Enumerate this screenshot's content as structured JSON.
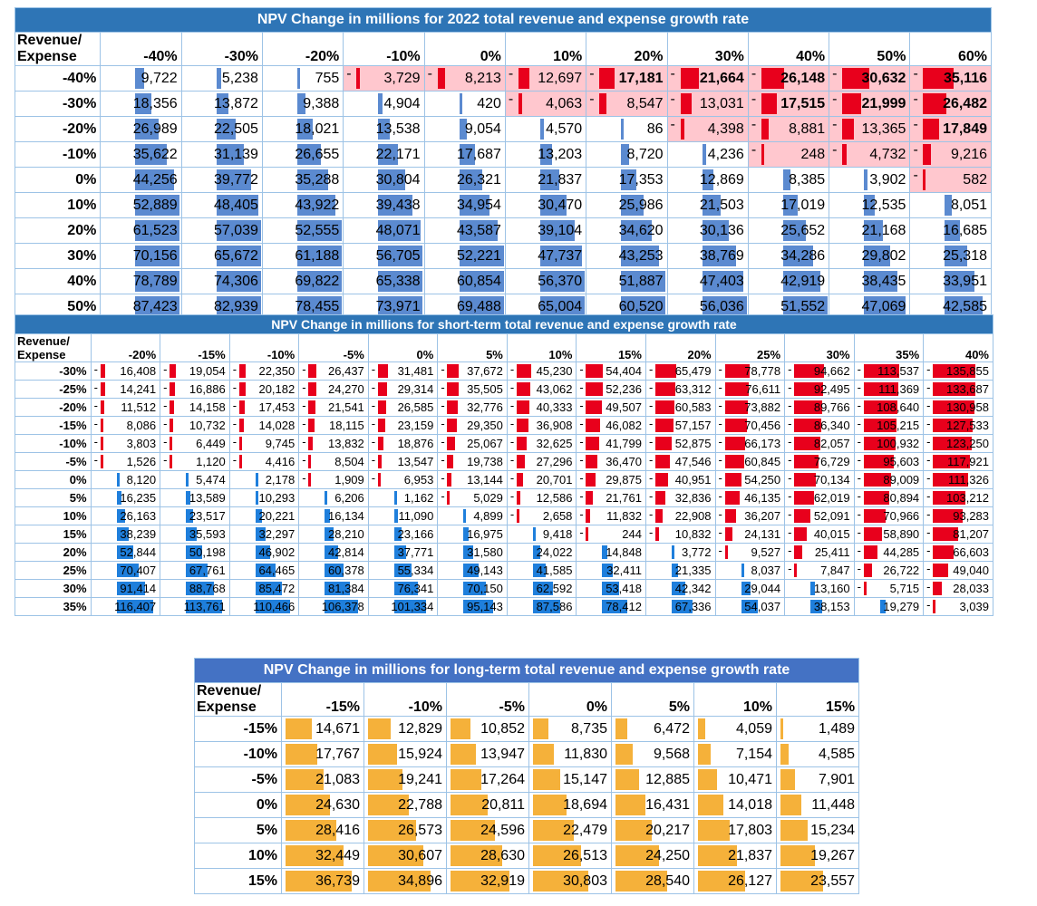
{
  "table1": {
    "title": "NPV Change in millions for 2022 total revenue and expense growth rate",
    "corner_label_1": "Revenue/",
    "corner_label_2": "Expense",
    "columns": [
      "-40%",
      "-30%",
      "-20%",
      "-10%",
      "0%",
      "10%",
      "20%",
      "30%",
      "40%",
      "50%",
      "60%"
    ],
    "rows": [
      {
        "label": "-40%",
        "values": [
          "9,722",
          "5,238",
          "755",
          "3,729",
          "8,213",
          "12,697",
          "17,181",
          "21,664",
          "26,148",
          "30,632",
          "35,116"
        ],
        "signs": [
          1,
          1,
          1,
          -1,
          -1,
          -1,
          -1,
          -1,
          -1,
          -1,
          -1
        ]
      },
      {
        "label": "-30%",
        "values": [
          "18,356",
          "13,872",
          "9,388",
          "4,904",
          "420",
          "4,063",
          "8,547",
          "13,031",
          "17,515",
          "21,999",
          "26,482"
        ],
        "signs": [
          1,
          1,
          1,
          1,
          1,
          -1,
          -1,
          -1,
          -1,
          -1,
          -1
        ]
      },
      {
        "label": "-20%",
        "values": [
          "26,989",
          "22,505",
          "18,021",
          "13,538",
          "9,054",
          "4,570",
          "86",
          "4,398",
          "8,881",
          "13,365",
          "17,849"
        ],
        "signs": [
          1,
          1,
          1,
          1,
          1,
          1,
          1,
          -1,
          -1,
          -1,
          -1
        ]
      },
      {
        "label": "-10%",
        "values": [
          "35,622",
          "31,139",
          "26,655",
          "22,171",
          "17,687",
          "13,203",
          "8,720",
          "4,236",
          "248",
          "4,732",
          "9,216"
        ],
        "signs": [
          1,
          1,
          1,
          1,
          1,
          1,
          1,
          1,
          -1,
          -1,
          -1
        ]
      },
      {
        "label": "0%",
        "values": [
          "44,256",
          "39,772",
          "35,288",
          "30,804",
          "26,321",
          "21,837",
          "17,353",
          "12,869",
          "8,385",
          "3,902",
          "582"
        ],
        "signs": [
          1,
          1,
          1,
          1,
          1,
          1,
          1,
          1,
          1,
          1,
          -1
        ]
      },
      {
        "label": "10%",
        "values": [
          "52,889",
          "48,405",
          "43,922",
          "39,438",
          "34,954",
          "30,470",
          "25,986",
          "21,503",
          "17,019",
          "12,535",
          "8,051"
        ],
        "signs": [
          1,
          1,
          1,
          1,
          1,
          1,
          1,
          1,
          1,
          1,
          1
        ]
      },
      {
        "label": "20%",
        "values": [
          "61,523",
          "57,039",
          "52,555",
          "48,071",
          "43,587",
          "39,104",
          "34,620",
          "30,136",
          "25,652",
          "21,168",
          "16,685"
        ],
        "signs": [
          1,
          1,
          1,
          1,
          1,
          1,
          1,
          1,
          1,
          1,
          1
        ]
      },
      {
        "label": "30%",
        "values": [
          "70,156",
          "65,672",
          "61,188",
          "56,705",
          "52,221",
          "47,737",
          "43,253",
          "38,769",
          "34,286",
          "29,802",
          "25,318"
        ],
        "signs": [
          1,
          1,
          1,
          1,
          1,
          1,
          1,
          1,
          1,
          1,
          1
        ]
      },
      {
        "label": "40%",
        "values": [
          "78,789",
          "74,306",
          "69,822",
          "65,338",
          "60,854",
          "56,370",
          "51,887",
          "47,403",
          "42,919",
          "38,435",
          "33,951"
        ],
        "signs": [
          1,
          1,
          1,
          1,
          1,
          1,
          1,
          1,
          1,
          1,
          1
        ]
      },
      {
        "label": "50%",
        "values": [
          "87,423",
          "82,939",
          "78,455",
          "73,971",
          "69,488",
          "65,004",
          "60,520",
          "56,036",
          "51,552",
          "47,069",
          "42,585"
        ],
        "signs": [
          1,
          1,
          1,
          1,
          1,
          1,
          1,
          1,
          1,
          1,
          1
        ]
      }
    ]
  },
  "table2": {
    "title": "NPV Change in millions for short-term total revenue and expense growth rate",
    "corner_label_1": "Revenue/",
    "corner_label_2": "Expense",
    "columns": [
      "-20%",
      "-15%",
      "-10%",
      "-5%",
      "0%",
      "5%",
      "10%",
      "15%",
      "20%",
      "25%",
      "30%",
      "35%",
      "40%"
    ],
    "rows": [
      {
        "label": "-30%",
        "values": [
          "16,408",
          "19,054",
          "22,350",
          "26,437",
          "31,481",
          "37,672",
          "45,230",
          "54,404",
          "65,479",
          "78,778",
          "94,662",
          "113,537",
          "135,855"
        ],
        "signs": [
          -1,
          -1,
          -1,
          -1,
          -1,
          -1,
          -1,
          -1,
          -1,
          -1,
          -1,
          -1,
          -1
        ]
      },
      {
        "label": "-25%",
        "values": [
          "14,241",
          "16,886",
          "20,182",
          "24,270",
          "29,314",
          "35,505",
          "43,062",
          "52,236",
          "63,312",
          "76,611",
          "92,495",
          "111,369",
          "133,687"
        ],
        "signs": [
          -1,
          -1,
          -1,
          -1,
          -1,
          -1,
          -1,
          -1,
          -1,
          -1,
          -1,
          -1,
          -1
        ]
      },
      {
        "label": "-20%",
        "values": [
          "11,512",
          "14,158",
          "17,453",
          "21,541",
          "26,585",
          "32,776",
          "40,333",
          "49,507",
          "60,583",
          "73,882",
          "89,766",
          "108,640",
          "130,958"
        ],
        "signs": [
          -1,
          -1,
          -1,
          -1,
          -1,
          -1,
          -1,
          -1,
          -1,
          -1,
          -1,
          -1,
          -1
        ]
      },
      {
        "label": "-15%",
        "values": [
          "8,086",
          "10,732",
          "14,028",
          "18,115",
          "23,159",
          "29,350",
          "36,908",
          "46,082",
          "57,157",
          "70,456",
          "86,340",
          "105,215",
          "127,533"
        ],
        "signs": [
          -1,
          -1,
          -1,
          -1,
          -1,
          -1,
          -1,
          -1,
          -1,
          -1,
          -1,
          -1,
          -1
        ]
      },
      {
        "label": "-10%",
        "values": [
          "3,803",
          "6,449",
          "9,745",
          "13,832",
          "18,876",
          "25,067",
          "32,625",
          "41,799",
          "52,875",
          "66,173",
          "82,057",
          "100,932",
          "123,250"
        ],
        "signs": [
          -1,
          -1,
          -1,
          -1,
          -1,
          -1,
          -1,
          -1,
          -1,
          -1,
          -1,
          -1,
          -1
        ]
      },
      {
        "label": "-5%",
        "values": [
          "1,526",
          "1,120",
          "4,416",
          "8,504",
          "13,547",
          "19,738",
          "27,296",
          "36,470",
          "47,546",
          "60,845",
          "76,729",
          "95,603",
          "117,921"
        ],
        "signs": [
          -1,
          -1,
          -1,
          -1,
          -1,
          -1,
          -1,
          -1,
          -1,
          -1,
          -1,
          -1,
          -1
        ]
      },
      {
        "label": "0%",
        "values": [
          "8,120",
          "5,474",
          "2,178",
          "1,909",
          "6,953",
          "13,144",
          "20,701",
          "29,875",
          "40,951",
          "54,250",
          "70,134",
          "89,009",
          "111,326"
        ],
        "signs": [
          1,
          1,
          1,
          -1,
          -1,
          -1,
          -1,
          -1,
          -1,
          -1,
          -1,
          -1,
          -1
        ]
      },
      {
        "label": "5%",
        "values": [
          "16,235",
          "13,589",
          "10,293",
          "6,206",
          "1,162",
          "5,029",
          "12,586",
          "21,761",
          "32,836",
          "46,135",
          "62,019",
          "80,894",
          "103,212"
        ],
        "signs": [
          1,
          1,
          1,
          1,
          1,
          -1,
          -1,
          -1,
          -1,
          -1,
          -1,
          -1,
          -1
        ]
      },
      {
        "label": "10%",
        "values": [
          "26,163",
          "23,517",
          "20,221",
          "16,134",
          "11,090",
          "4,899",
          "2,658",
          "11,832",
          "22,908",
          "36,207",
          "52,091",
          "70,966",
          "93,283"
        ],
        "signs": [
          1,
          1,
          1,
          1,
          1,
          1,
          -1,
          -1,
          -1,
          -1,
          -1,
          -1,
          -1
        ]
      },
      {
        "label": "15%",
        "values": [
          "38,239",
          "35,593",
          "32,297",
          "28,210",
          "23,166",
          "16,975",
          "9,418",
          "244",
          "10,832",
          "24,131",
          "40,015",
          "58,890",
          "81,207"
        ],
        "signs": [
          1,
          1,
          1,
          1,
          1,
          1,
          1,
          -1,
          -1,
          -1,
          -1,
          -1,
          -1
        ]
      },
      {
        "label": "20%",
        "values": [
          "52,844",
          "50,198",
          "46,902",
          "42,814",
          "37,771",
          "31,580",
          "24,022",
          "14,848",
          "3,772",
          "9,527",
          "25,411",
          "44,285",
          "66,603"
        ],
        "signs": [
          1,
          1,
          1,
          1,
          1,
          1,
          1,
          1,
          1,
          -1,
          -1,
          -1,
          -1
        ]
      },
      {
        "label": "25%",
        "values": [
          "70,407",
          "67,761",
          "64,465",
          "60,378",
          "55,334",
          "49,143",
          "41,585",
          "32,411",
          "21,335",
          "8,037",
          "7,847",
          "26,722",
          "49,040"
        ],
        "signs": [
          1,
          1,
          1,
          1,
          1,
          1,
          1,
          1,
          1,
          1,
          -1,
          -1,
          -1
        ]
      },
      {
        "label": "30%",
        "values": [
          "91,414",
          "88,768",
          "85,472",
          "81,384",
          "76,341",
          "70,150",
          "62,592",
          "53,418",
          "42,342",
          "29,044",
          "13,160",
          "5,715",
          "28,033"
        ],
        "signs": [
          1,
          1,
          1,
          1,
          1,
          1,
          1,
          1,
          1,
          1,
          1,
          -1,
          -1
        ]
      },
      {
        "label": "35%",
        "values": [
          "116,407",
          "113,761",
          "110,466",
          "106,378",
          "101,334",
          "95,143",
          "87,586",
          "78,412",
          "67,336",
          "54,037",
          "38,153",
          "19,279",
          "3,039"
        ],
        "signs": [
          1,
          1,
          1,
          1,
          1,
          1,
          1,
          1,
          1,
          1,
          1,
          1,
          -1
        ]
      }
    ]
  },
  "table3": {
    "title": "NPV Change in millions for long-term total revenue and expense growth rate",
    "corner_label_1": "Revenue/",
    "corner_label_2": "Expense",
    "columns": [
      "-15%",
      "-10%",
      "-5%",
      "0%",
      "5%",
      "10%",
      "15%"
    ],
    "rows": [
      {
        "label": "-15%",
        "values": [
          "14,671",
          "12,829",
          "10,852",
          "8,735",
          "6,472",
          "4,059",
          "1,489"
        ],
        "signs": [
          1,
          1,
          1,
          1,
          1,
          1,
          1
        ]
      },
      {
        "label": "-10%",
        "values": [
          "17,767",
          "15,924",
          "13,947",
          "11,830",
          "9,568",
          "7,154",
          "4,585"
        ],
        "signs": [
          1,
          1,
          1,
          1,
          1,
          1,
          1
        ]
      },
      {
        "label": "-5%",
        "values": [
          "21,083",
          "19,241",
          "17,264",
          "15,147",
          "12,885",
          "10,471",
          "7,901"
        ],
        "signs": [
          1,
          1,
          1,
          1,
          1,
          1,
          1
        ]
      },
      {
        "label": "0%",
        "values": [
          "24,630",
          "22,788",
          "20,811",
          "18,694",
          "16,431",
          "14,018",
          "11,448"
        ],
        "signs": [
          1,
          1,
          1,
          1,
          1,
          1,
          1
        ]
      },
      {
        "label": "5%",
        "values": [
          "28,416",
          "26,573",
          "24,596",
          "22,479",
          "20,217",
          "17,803",
          "15,234"
        ],
        "signs": [
          1,
          1,
          1,
          1,
          1,
          1,
          1
        ]
      },
      {
        "label": "10%",
        "values": [
          "32,449",
          "30,607",
          "28,630",
          "26,513",
          "24,250",
          "21,837",
          "19,267"
        ],
        "signs": [
          1,
          1,
          1,
          1,
          1,
          1,
          1
        ]
      },
      {
        "label": "15%",
        "values": [
          "36,739",
          "34,896",
          "32,919",
          "30,803",
          "28,540",
          "26,127",
          "23,557"
        ],
        "signs": [
          1,
          1,
          1,
          1,
          1,
          1,
          1
        ]
      }
    ]
  },
  "colors": {
    "table1_bar": "#5b8ad0",
    "table2_bar": "#1f7fdc",
    "table3_bar": "#f5b13a",
    "negative_bar": "#e8001c",
    "negative_fill": "#ffc7ce",
    "title_bar": "#2e75b6"
  }
}
